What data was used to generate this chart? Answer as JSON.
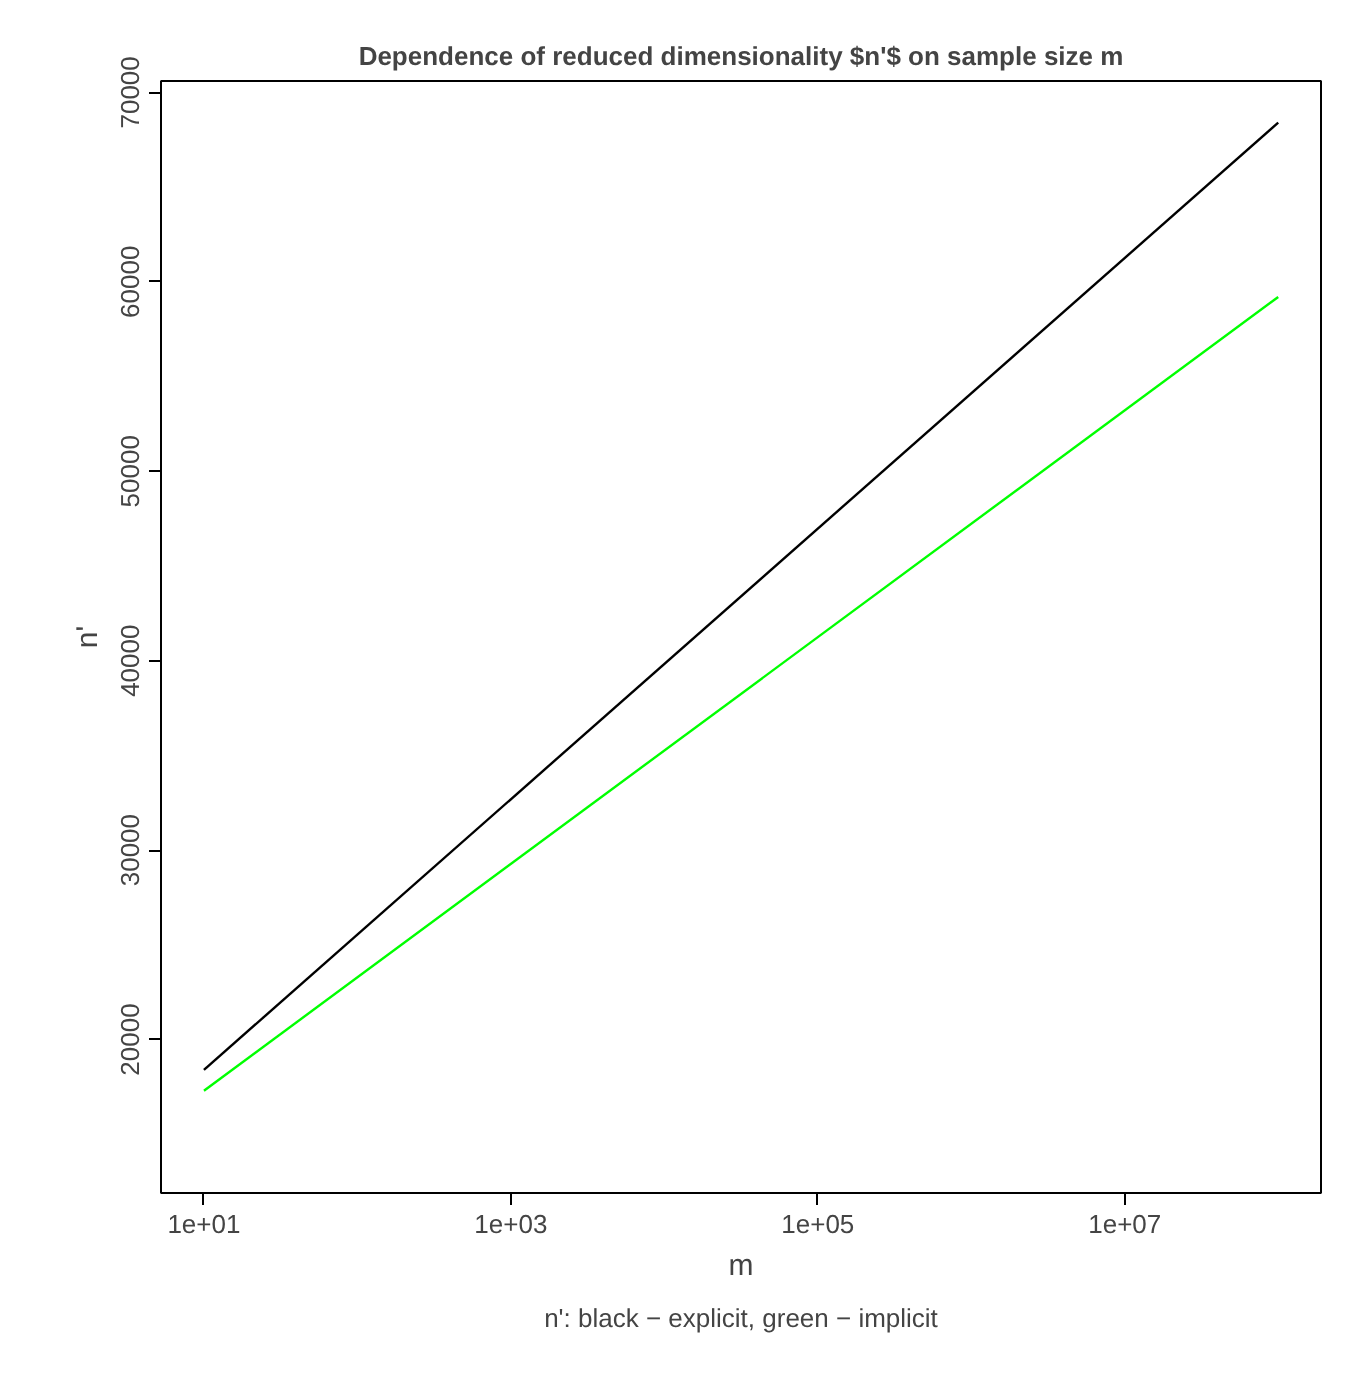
{
  "chart_data": {
    "type": "line",
    "title": "Dependence of reduced dimensionality $n'$ on sample size m",
    "xlabel": "m",
    "ylabel": "n'",
    "annotations": [
      "n': black − explicit, green − implicit"
    ],
    "log": "x",
    "x": [
      10,
      100000000
    ],
    "series": [
      {
        "color": "#000000",
        "values": [
          18400,
          68400
        ]
      },
      {
        "color": "#00ff00",
        "values": [
          17300,
          59200
        ]
      }
    ],
    "xlim": [
      5.25,
      190000000
    ],
    "xticks": [
      {
        "value": 10,
        "label": "1e+01"
      },
      {
        "value": 1000,
        "label": "1e+03"
      },
      {
        "value": 100000,
        "label": "1e+05"
      },
      {
        "value": 10000000,
        "label": "1e+07"
      }
    ],
    "ylim": [
      11900,
      70600
    ],
    "yticks": [
      20000,
      30000,
      40000,
      50000,
      60000,
      70000
    ],
    "grid": false,
    "marker": "none",
    "line_style": "solid"
  }
}
